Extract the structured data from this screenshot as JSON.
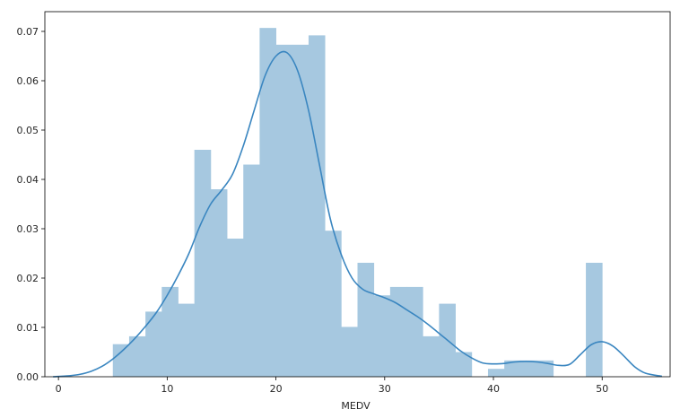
{
  "chart_data": {
    "type": "bar",
    "subtype": "histogram-with-kde",
    "xlabel": "MEDV",
    "ylabel": "",
    "xlim": [
      -1.25,
      56.25
    ],
    "ylim": [
      0,
      0.074
    ],
    "x_ticks": [
      0,
      10,
      20,
      30,
      40,
      50
    ],
    "y_ticks": [
      0.0,
      0.01,
      0.02,
      0.03,
      0.04,
      0.05,
      0.06,
      0.07
    ],
    "y_tick_labels": [
      "0.00",
      "0.01",
      "0.02",
      "0.03",
      "0.04",
      "0.05",
      "0.06",
      "0.07"
    ],
    "grid": false,
    "colors": {
      "histogram": "#a6c8e0",
      "kde": "#3a86c0",
      "frame": "#000000"
    },
    "histogram": {
      "bin_start": 5.0,
      "bin_width": 1.5,
      "densities": [
        0.0066,
        0.0082,
        0.0132,
        0.0182,
        0.0148,
        0.046,
        0.038,
        0.028,
        0.043,
        0.0707,
        0.0673,
        0.0673,
        0.0692,
        0.0296,
        0.0101,
        0.0231,
        0.0165,
        0.0182,
        0.0182,
        0.0082,
        0.0148,
        0.005,
        0.0,
        0.0016,
        0.0033,
        0.0033,
        0.0033,
        0.0,
        0.0,
        0.0231
      ]
    },
    "kde": {
      "x": [
        -0.5,
        1,
        2,
        3,
        4,
        5,
        6,
        7,
        8,
        9,
        10,
        11,
        12,
        13,
        14,
        15,
        16,
        17,
        18,
        19,
        20,
        21,
        22,
        23,
        24,
        25,
        26,
        27,
        28,
        29,
        30,
        31,
        32,
        33,
        34,
        35,
        36,
        37,
        38,
        39,
        40,
        41,
        42,
        43,
        44,
        45,
        46,
        47,
        48,
        49,
        50,
        51,
        52,
        53,
        54,
        55.5
      ],
      "y": [
        0.0,
        0.0002,
        0.0005,
        0.0011,
        0.0021,
        0.0036,
        0.0055,
        0.0077,
        0.0102,
        0.013,
        0.0165,
        0.0205,
        0.025,
        0.0305,
        0.035,
        0.0378,
        0.041,
        0.0468,
        0.054,
        0.061,
        0.065,
        0.0657,
        0.062,
        0.054,
        0.043,
        0.032,
        0.0248,
        0.02,
        0.0177,
        0.0168,
        0.016,
        0.015,
        0.0136,
        0.0122,
        0.0106,
        0.0088,
        0.007,
        0.0052,
        0.0038,
        0.0028,
        0.0026,
        0.0027,
        0.003,
        0.0031,
        0.003,
        0.0027,
        0.0023,
        0.0025,
        0.0045,
        0.0065,
        0.0071,
        0.0062,
        0.0042,
        0.002,
        0.0007,
        0.0001
      ]
    }
  }
}
